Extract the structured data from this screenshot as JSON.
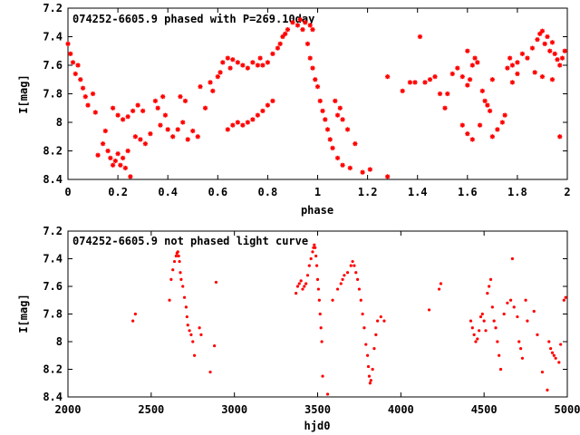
{
  "chart_data": [
    {
      "type": "scatter",
      "title": "074252-6605.9 phased with P=269.10day",
      "xlabel": "phase",
      "ylabel": "I[mag]",
      "xlim": [
        0,
        2
      ],
      "ylim": [
        7.2,
        8.4
      ],
      "y_inverted": true,
      "xticks": [
        "0",
        "0.2",
        "0.4",
        "0.6",
        "0.8",
        "1",
        "1.2",
        "1.4",
        "1.6",
        "1.8",
        "2"
      ],
      "yticks": [
        "7.2",
        "7.4",
        "7.6",
        "7.8",
        "8",
        "8.2",
        "8.4"
      ],
      "marker": "asterisk",
      "color": "#ff0000",
      "points": [
        [
          0.0,
          7.45
        ],
        [
          0.01,
          7.52
        ],
        [
          0.02,
          7.58
        ],
        [
          0.03,
          7.66
        ],
        [
          0.04,
          7.6
        ],
        [
          0.05,
          7.7
        ],
        [
          0.06,
          7.76
        ],
        [
          0.07,
          7.82
        ],
        [
          0.08,
          7.88
        ],
        [
          0.1,
          7.8
        ],
        [
          0.11,
          7.93
        ],
        [
          0.12,
          8.23
        ],
        [
          0.14,
          8.15
        ],
        [
          0.15,
          8.06
        ],
        [
          0.16,
          8.2
        ],
        [
          0.17,
          8.25
        ],
        [
          0.18,
          8.3
        ],
        [
          0.19,
          8.27
        ],
        [
          0.2,
          8.22
        ],
        [
          0.21,
          8.3
        ],
        [
          0.22,
          8.25
        ],
        [
          0.23,
          8.32
        ],
        [
          0.24,
          8.2
        ],
        [
          0.25,
          8.38
        ],
        [
          0.18,
          7.9
        ],
        [
          0.2,
          7.95
        ],
        [
          0.22,
          7.98
        ],
        [
          0.24,
          7.96
        ],
        [
          0.26,
          7.92
        ],
        [
          0.28,
          7.88
        ],
        [
          0.3,
          7.92
        ],
        [
          0.27,
          8.1
        ],
        [
          0.29,
          8.12
        ],
        [
          0.31,
          8.15
        ],
        [
          0.33,
          8.08
        ],
        [
          0.35,
          7.85
        ],
        [
          0.36,
          7.9
        ],
        [
          0.37,
          8.02
        ],
        [
          0.38,
          7.82
        ],
        [
          0.39,
          7.95
        ],
        [
          0.4,
          8.05
        ],
        [
          0.42,
          8.1
        ],
        [
          0.44,
          8.05
        ],
        [
          0.46,
          8.0
        ],
        [
          0.45,
          7.82
        ],
        [
          0.47,
          7.85
        ],
        [
          0.48,
          8.12
        ],
        [
          0.5,
          8.06
        ],
        [
          0.52,
          8.1
        ],
        [
          0.53,
          7.75
        ],
        [
          0.55,
          7.9
        ],
        [
          0.57,
          7.72
        ],
        [
          0.58,
          7.78
        ],
        [
          0.6,
          7.68
        ],
        [
          0.61,
          7.65
        ],
        [
          0.62,
          7.58
        ],
        [
          0.64,
          7.55
        ],
        [
          0.65,
          7.62
        ],
        [
          0.66,
          7.56
        ],
        [
          0.68,
          7.58
        ],
        [
          0.7,
          7.6
        ],
        [
          0.72,
          7.62
        ],
        [
          0.74,
          7.58
        ],
        [
          0.76,
          7.6
        ],
        [
          0.77,
          7.55
        ],
        [
          0.78,
          7.6
        ],
        [
          0.8,
          7.58
        ],
        [
          0.82,
          7.52
        ],
        [
          0.84,
          7.48
        ],
        [
          0.85,
          7.45
        ],
        [
          0.86,
          7.4
        ],
        [
          0.87,
          7.38
        ],
        [
          0.88,
          7.35
        ],
        [
          0.9,
          7.3
        ],
        [
          0.92,
          7.32
        ],
        [
          0.93,
          7.28
        ],
        [
          0.94,
          7.35
        ],
        [
          0.95,
          7.3
        ],
        [
          0.97,
          7.32
        ],
        [
          0.98,
          7.35
        ],
        [
          0.96,
          7.45
        ],
        [
          0.97,
          7.55
        ],
        [
          0.98,
          7.62
        ],
        [
          0.99,
          7.7
        ],
        [
          1.0,
          7.75
        ],
        [
          1.01,
          7.85
        ],
        [
          1.02,
          7.92
        ],
        [
          1.03,
          7.98
        ],
        [
          1.04,
          8.05
        ],
        [
          1.05,
          8.12
        ],
        [
          1.06,
          8.18
        ],
        [
          1.08,
          8.25
        ],
        [
          1.1,
          8.3
        ],
        [
          1.13,
          8.32
        ],
        [
          1.18,
          8.35
        ],
        [
          1.21,
          8.33
        ],
        [
          1.28,
          8.38
        ],
        [
          0.64,
          8.05
        ],
        [
          0.66,
          8.02
        ],
        [
          0.68,
          8.0
        ],
        [
          0.7,
          8.02
        ],
        [
          0.72,
          8.0
        ],
        [
          0.74,
          7.98
        ],
        [
          0.76,
          7.95
        ],
        [
          0.78,
          7.92
        ],
        [
          0.8,
          7.88
        ],
        [
          0.82,
          7.85
        ],
        [
          1.07,
          7.85
        ],
        [
          1.08,
          7.95
        ],
        [
          1.09,
          7.9
        ],
        [
          1.1,
          7.98
        ],
        [
          1.12,
          8.05
        ],
        [
          1.15,
          8.15
        ],
        [
          1.28,
          7.68
        ],
        [
          1.34,
          7.78
        ],
        [
          1.37,
          7.72
        ],
        [
          1.39,
          7.72
        ],
        [
          1.41,
          7.4
        ],
        [
          1.43,
          7.72
        ],
        [
          1.45,
          7.7
        ],
        [
          1.47,
          7.68
        ],
        [
          1.49,
          7.8
        ],
        [
          1.51,
          7.9
        ],
        [
          1.54,
          7.66
        ],
        [
          1.56,
          7.62
        ],
        [
          1.58,
          7.68
        ],
        [
          1.6,
          7.74
        ],
        [
          1.61,
          7.7
        ],
        [
          1.62,
          7.6
        ],
        [
          1.63,
          7.55
        ],
        [
          1.64,
          7.58
        ],
        [
          1.66,
          7.78
        ],
        [
          1.67,
          7.85
        ],
        [
          1.68,
          7.88
        ],
        [
          1.69,
          7.92
        ],
        [
          1.65,
          8.02
        ],
        [
          1.7,
          8.1
        ],
        [
          1.72,
          8.05
        ],
        [
          1.74,
          8.0
        ],
        [
          1.75,
          7.95
        ],
        [
          1.58,
          8.02
        ],
        [
          1.6,
          8.08
        ],
        [
          1.62,
          8.12
        ],
        [
          1.76,
          7.62
        ],
        [
          1.77,
          7.55
        ],
        [
          1.78,
          7.6
        ],
        [
          1.8,
          7.58
        ],
        [
          1.82,
          7.52
        ],
        [
          1.84,
          7.55
        ],
        [
          1.86,
          7.48
        ],
        [
          1.88,
          7.42
        ],
        [
          1.89,
          7.38
        ],
        [
          1.9,
          7.36
        ],
        [
          1.91,
          7.45
        ],
        [
          1.92,
          7.4
        ],
        [
          1.93,
          7.5
        ],
        [
          1.94,
          7.44
        ],
        [
          1.95,
          7.52
        ],
        [
          1.96,
          7.56
        ],
        [
          1.97,
          7.6
        ],
        [
          1.98,
          7.55
        ],
        [
          1.99,
          7.5
        ],
        [
          1.87,
          7.65
        ],
        [
          1.9,
          7.68
        ],
        [
          1.94,
          7.7
        ],
        [
          1.78,
          7.72
        ],
        [
          1.8,
          7.66
        ],
        [
          1.97,
          8.1
        ],
        [
          1.6,
          7.5
        ],
        [
          1.52,
          7.8
        ],
        [
          1.7,
          7.7
        ]
      ]
    },
    {
      "type": "scatter",
      "title": "074252-6605.9 not phased light curve",
      "xlabel": "hjd0",
      "ylabel": "I[mag]",
      "xlim": [
        2000,
        5000
      ],
      "ylim": [
        7.2,
        8.4
      ],
      "y_inverted": true,
      "xticks": [
        "2000",
        "2500",
        "3000",
        "3500",
        "4000",
        "4500",
        "5000"
      ],
      "yticks": [
        "7.2",
        "7.4",
        "7.6",
        "7.8",
        "8",
        "8.2",
        "8.4"
      ],
      "marker": "dot",
      "color": "#ff0000",
      "points": [
        [
          2390,
          7.85
        ],
        [
          2405,
          7.8
        ],
        [
          2610,
          7.7
        ],
        [
          2620,
          7.55
        ],
        [
          2630,
          7.48
        ],
        [
          2640,
          7.42
        ],
        [
          2650,
          7.38
        ],
        [
          2655,
          7.36
        ],
        [
          2660,
          7.35
        ],
        [
          2665,
          7.38
        ],
        [
          2670,
          7.42
        ],
        [
          2675,
          7.5
        ],
        [
          2680,
          7.55
        ],
        [
          2690,
          7.6
        ],
        [
          2700,
          7.68
        ],
        [
          2710,
          7.75
        ],
        [
          2715,
          7.82
        ],
        [
          2720,
          7.88
        ],
        [
          2730,
          7.92
        ],
        [
          2740,
          7.95
        ],
        [
          2750,
          8.0
        ],
        [
          2760,
          8.1
        ],
        [
          2790,
          7.9
        ],
        [
          2800,
          7.95
        ],
        [
          2855,
          8.22
        ],
        [
          2880,
          8.03
        ],
        [
          2890,
          7.57
        ],
        [
          3370,
          7.65
        ],
        [
          3380,
          7.6
        ],
        [
          3390,
          7.58
        ],
        [
          3400,
          7.56
        ],
        [
          3410,
          7.62
        ],
        [
          3420,
          7.6
        ],
        [
          3430,
          7.58
        ],
        [
          3440,
          7.52
        ],
        [
          3450,
          7.45
        ],
        [
          3460,
          7.4
        ],
        [
          3470,
          7.35
        ],
        [
          3475,
          7.32
        ],
        [
          3480,
          7.3
        ],
        [
          3485,
          7.32
        ],
        [
          3490,
          7.38
        ],
        [
          3495,
          7.45
        ],
        [
          3500,
          7.55
        ],
        [
          3505,
          7.62
        ],
        [
          3510,
          7.7
        ],
        [
          3515,
          7.8
        ],
        [
          3520,
          7.9
        ],
        [
          3525,
          8.0
        ],
        [
          3530,
          8.25
        ],
        [
          3560,
          8.38
        ],
        [
          3590,
          7.7
        ],
        [
          3620,
          7.62
        ],
        [
          3640,
          7.58
        ],
        [
          3650,
          7.55
        ],
        [
          3660,
          7.52
        ],
        [
          3680,
          7.5
        ],
        [
          3700,
          7.45
        ],
        [
          3710,
          7.42
        ],
        [
          3720,
          7.45
        ],
        [
          3730,
          7.5
        ],
        [
          3740,
          7.55
        ],
        [
          3750,
          7.62
        ],
        [
          3760,
          7.7
        ],
        [
          3770,
          7.8
        ],
        [
          3780,
          7.9
        ],
        [
          3790,
          8.02
        ],
        [
          3800,
          8.1
        ],
        [
          3805,
          8.18
        ],
        [
          3810,
          8.25
        ],
        [
          3815,
          8.3
        ],
        [
          3820,
          8.28
        ],
        [
          3830,
          8.2
        ],
        [
          3840,
          8.05
        ],
        [
          3850,
          7.95
        ],
        [
          3860,
          7.85
        ],
        [
          3880,
          7.82
        ],
        [
          3900,
          7.85
        ],
        [
          4170,
          7.77
        ],
        [
          4230,
          7.62
        ],
        [
          4240,
          7.58
        ],
        [
          4420,
          7.85
        ],
        [
          4430,
          7.9
        ],
        [
          4440,
          7.95
        ],
        [
          4450,
          8.0
        ],
        [
          4460,
          7.98
        ],
        [
          4470,
          7.92
        ],
        [
          4480,
          7.82
        ],
        [
          4490,
          7.8
        ],
        [
          4500,
          7.85
        ],
        [
          4510,
          7.92
        ],
        [
          4520,
          7.65
        ],
        [
          4530,
          7.6
        ],
        [
          4540,
          7.55
        ],
        [
          4550,
          7.75
        ],
        [
          4560,
          7.85
        ],
        [
          4570,
          7.9
        ],
        [
          4580,
          8.0
        ],
        [
          4590,
          8.1
        ],
        [
          4600,
          8.2
        ],
        [
          4620,
          7.8
        ],
        [
          4640,
          7.72
        ],
        [
          4660,
          7.7
        ],
        [
          4670,
          7.4
        ],
        [
          4680,
          7.75
        ],
        [
          4700,
          7.82
        ],
        [
          4710,
          8.0
        ],
        [
          4720,
          8.05
        ],
        [
          4730,
          8.12
        ],
        [
          4750,
          7.7
        ],
        [
          4760,
          7.85
        ],
        [
          4800,
          7.78
        ],
        [
          4820,
          7.95
        ],
        [
          4850,
          8.22
        ],
        [
          4880,
          8.35
        ],
        [
          4890,
          8.0
        ],
        [
          4900,
          8.05
        ],
        [
          4910,
          8.08
        ],
        [
          4920,
          8.1
        ],
        [
          4930,
          8.12
        ],
        [
          4950,
          8.15
        ],
        [
          4960,
          8.02
        ],
        [
          4980,
          7.7
        ],
        [
          4990,
          7.68
        ]
      ]
    }
  ]
}
